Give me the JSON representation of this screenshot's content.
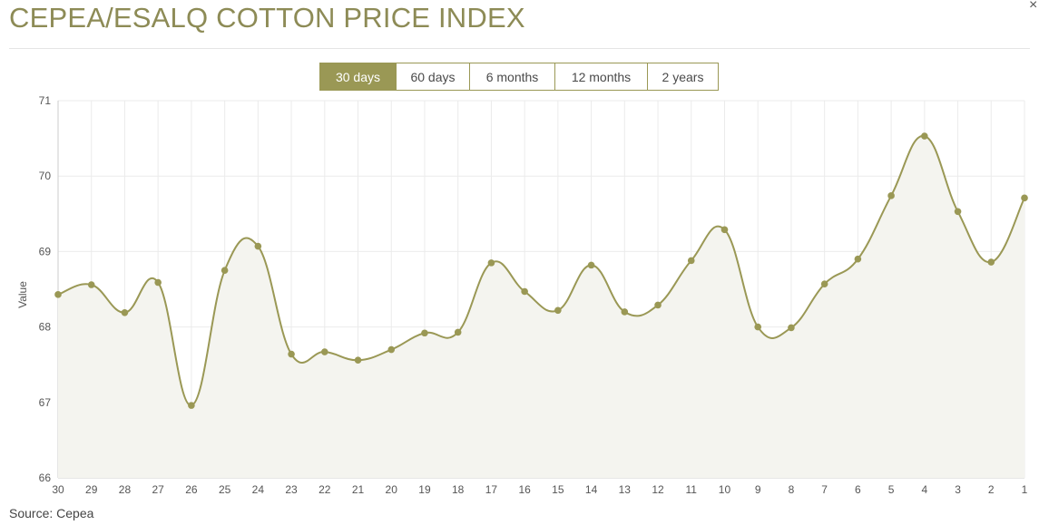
{
  "header": {
    "title": "CEPEA/ESALQ COTTON PRICE INDEX",
    "close_label": "×"
  },
  "tabs": [
    {
      "label": "30 days",
      "active": true
    },
    {
      "label": "60 days",
      "active": false
    },
    {
      "label": "6 months",
      "active": false
    },
    {
      "label": "12 months",
      "active": false
    },
    {
      "label": "2 years",
      "active": false
    }
  ],
  "footer": {
    "source": "Source: Cepea"
  },
  "colors": {
    "accent": "#9a9855",
    "line": "#9a9855",
    "area": "#f4f4ef",
    "grid": "#ebebeb",
    "title": "#8d8b56"
  },
  "chart_data": {
    "type": "area",
    "title": "",
    "xlabel": "",
    "ylabel": "Value",
    "ylim": [
      66,
      71
    ],
    "yticks": [
      66,
      67,
      68,
      69,
      70,
      71
    ],
    "grid": true,
    "categories": [
      "30",
      "29",
      "28",
      "27",
      "26",
      "25",
      "24",
      "23",
      "22",
      "21",
      "20",
      "19",
      "18",
      "17",
      "16",
      "15",
      "14",
      "13",
      "12",
      "11",
      "10",
      "9",
      "8",
      "7",
      "6",
      "5",
      "4",
      "3",
      "2",
      "1"
    ],
    "series": [
      {
        "values": [
          68.43,
          68.56,
          68.19,
          68.59,
          66.96,
          68.75,
          69.07,
          67.64,
          67.67,
          67.56,
          67.7,
          67.92,
          67.93,
          68.85,
          68.47,
          68.22,
          68.82,
          68.2,
          68.29,
          68.88,
          69.29,
          68.0,
          67.99,
          68.57,
          68.9,
          69.74,
          70.53,
          69.53,
          68.86,
          69.71
        ]
      }
    ]
  }
}
